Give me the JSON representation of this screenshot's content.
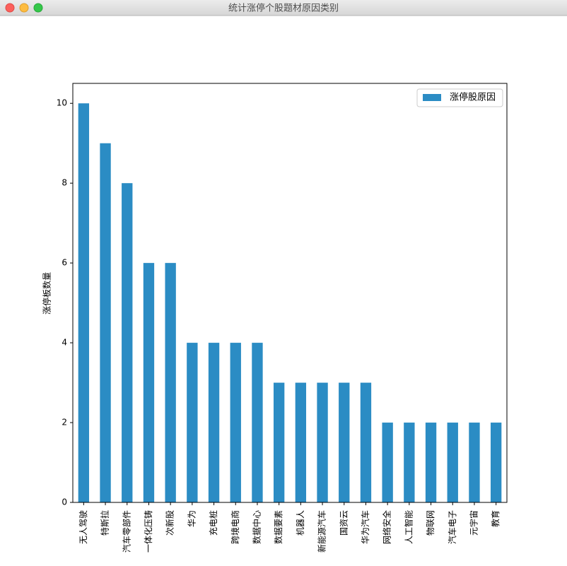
{
  "window_title": "统计涨停个股题材原因类别",
  "chart_data": {
    "type": "bar",
    "ylabel": "涨停板数量",
    "categories": [
      "无人驾驶",
      "特斯拉",
      "汽车零部件",
      "一体化压铸",
      "次新股",
      "华为",
      "充电桩",
      "跨境电商",
      "数据中心",
      "数据要素",
      "机器人",
      "新能源汽车",
      "国资云",
      "华为汽车",
      "网络安全",
      "人工智能",
      "物联网",
      "汽车电子",
      "元宇宙",
      "教育"
    ],
    "series": [
      {
        "name": "涨停股原因",
        "color": "#2b8cc4",
        "values": [
          10,
          9,
          8,
          6,
          6,
          4,
          4,
          4,
          4,
          3,
          3,
          3,
          3,
          3,
          2,
          2,
          2,
          2,
          2,
          2
        ]
      }
    ],
    "ylim": [
      0,
      10.5
    ],
    "yticks": [
      0,
      2,
      4,
      6,
      8,
      10
    ],
    "legend": "upper right"
  }
}
